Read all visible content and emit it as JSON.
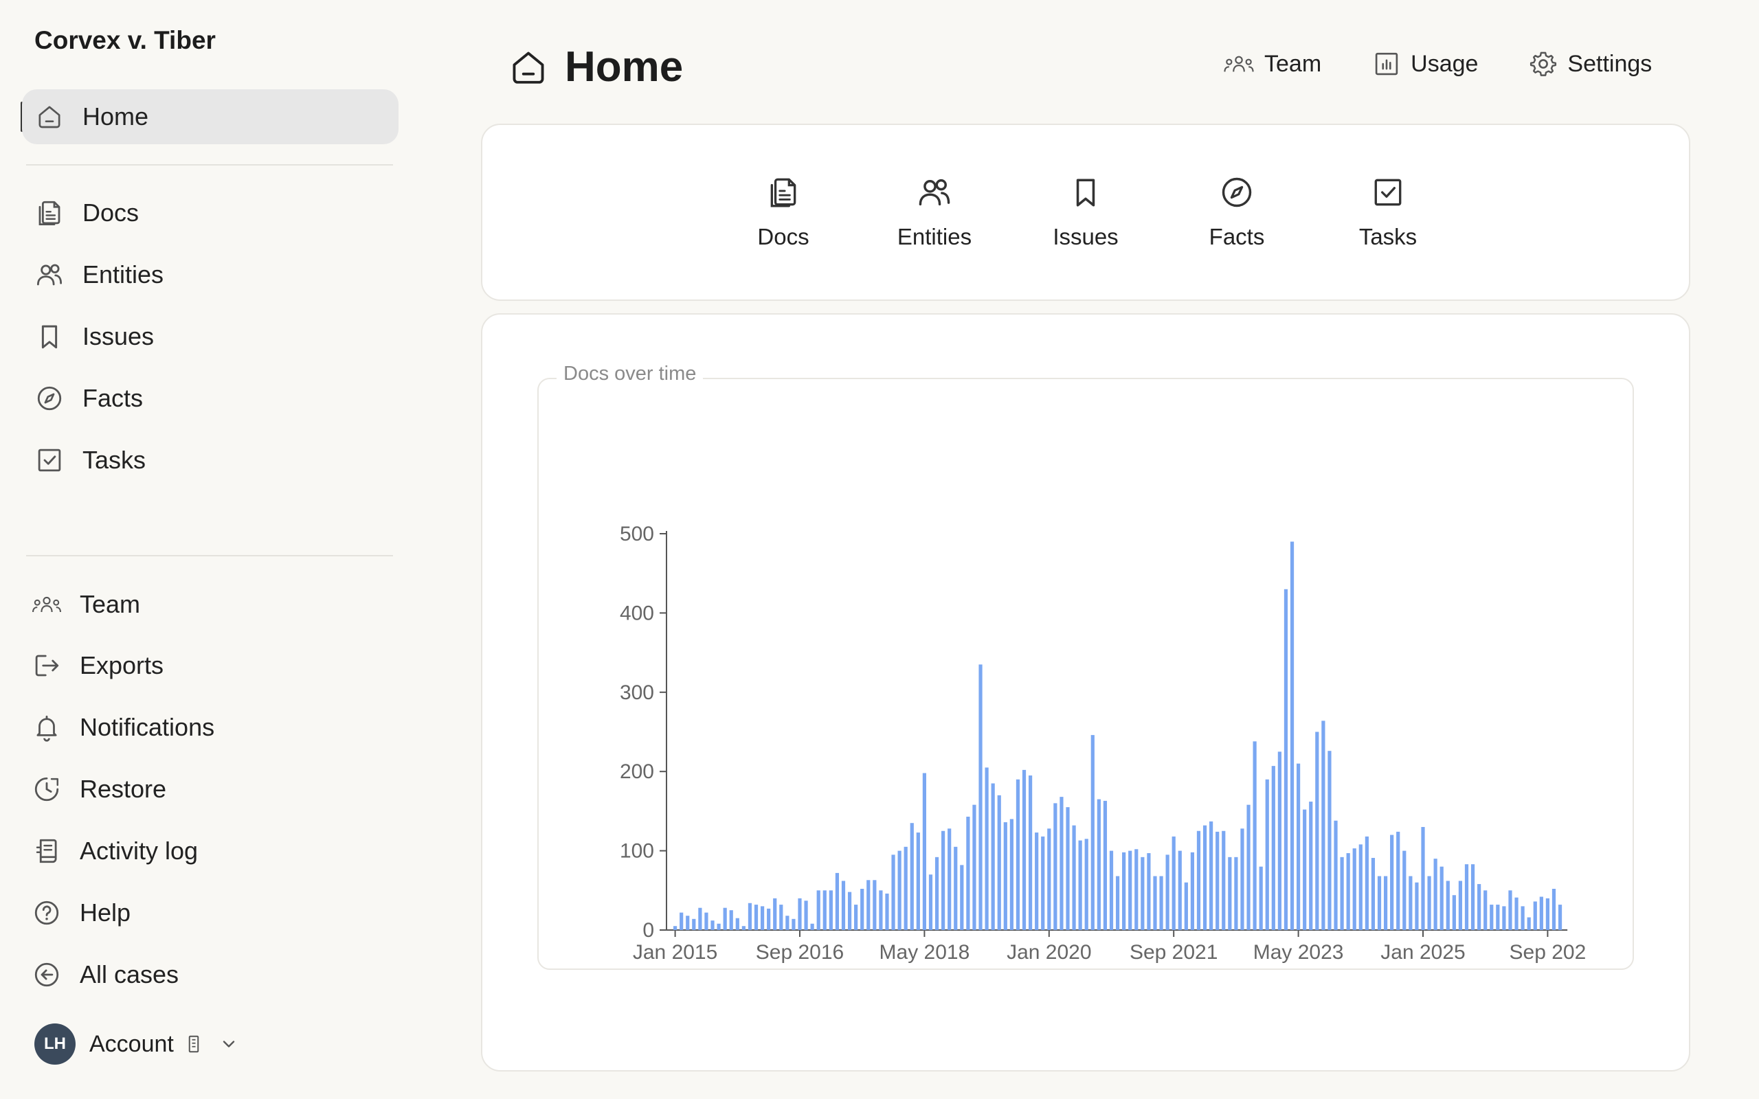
{
  "sidebar": {
    "case_title": "Corvex v. Tiber",
    "primary": [
      {
        "label": "Home",
        "icon": "home-icon"
      }
    ],
    "sections": [
      {
        "label": "Docs",
        "icon": "docs-icon"
      },
      {
        "label": "Entities",
        "icon": "entities-icon"
      },
      {
        "label": "Issues",
        "icon": "bookmark-icon"
      },
      {
        "label": "Facts",
        "icon": "compass-icon"
      },
      {
        "label": "Tasks",
        "icon": "checkbox-icon"
      }
    ],
    "utilities": [
      {
        "label": "Team",
        "icon": "team-icon"
      },
      {
        "label": "Exports",
        "icon": "export-icon"
      },
      {
        "label": "Notifications",
        "icon": "bell-icon"
      },
      {
        "label": "Restore",
        "icon": "restore-icon"
      },
      {
        "label": "Activity log",
        "icon": "activity-log-icon"
      },
      {
        "label": "Help",
        "icon": "help-icon"
      },
      {
        "label": "All cases",
        "icon": "back-arrow-icon"
      }
    ],
    "account": {
      "initials": "LH",
      "label": "Account",
      "avatar_color": "#3b4a5c"
    }
  },
  "header": {
    "title": "Home",
    "actions": [
      {
        "label": "Team",
        "icon": "team-icon"
      },
      {
        "label": "Usage",
        "icon": "usage-icon"
      },
      {
        "label": "Settings",
        "icon": "gear-icon"
      }
    ]
  },
  "quick_links": [
    {
      "label": "Docs",
      "icon": "docs-icon"
    },
    {
      "label": "Entities",
      "icon": "entities-icon"
    },
    {
      "label": "Issues",
      "icon": "bookmark-icon"
    },
    {
      "label": "Facts",
      "icon": "compass-icon"
    },
    {
      "label": "Tasks",
      "icon": "checkbox-icon"
    }
  ],
  "chart_title": "Docs over time",
  "chart_data": {
    "type": "bar",
    "title": "Docs over time",
    "xlabel": "",
    "ylabel": "",
    "x_start": "2015-01",
    "ylim": [
      0,
      500
    ],
    "yticks": [
      0,
      100,
      200,
      300,
      400,
      500
    ],
    "xticks": [
      {
        "label": "Jan 2015",
        "index": 0
      },
      {
        "label": "Sep 2016",
        "index": 20
      },
      {
        "label": "May 2018",
        "index": 40
      },
      {
        "label": "Jan 2020",
        "index": 60
      },
      {
        "label": "Sep 2021",
        "index": 80
      },
      {
        "label": "May 2023",
        "index": 100
      },
      {
        "label": "Jan 2025",
        "index": 120
      },
      {
        "label": "Sep 202",
        "index": 140
      }
    ],
    "bar_color": "#7aa7f2",
    "values": [
      5,
      22,
      18,
      14,
      28,
      22,
      12,
      8,
      28,
      25,
      15,
      5,
      34,
      32,
      30,
      27,
      40,
      32,
      18,
      14,
      40,
      37,
      8,
      50,
      50,
      50,
      72,
      62,
      48,
      32,
      52,
      63,
      63,
      50,
      46,
      95,
      100,
      105,
      135,
      123,
      198,
      70,
      92,
      125,
      128,
      105,
      82,
      143,
      158,
      335,
      205,
      185,
      170,
      136,
      140,
      190,
      202,
      195,
      123,
      118,
      128,
      160,
      168,
      155,
      132,
      113,
      115,
      246,
      165,
      163,
      100,
      68,
      98,
      100,
      102,
      92,
      97,
      68,
      68,
      95,
      118,
      100,
      60,
      98,
      125,
      132,
      137,
      124,
      125,
      92,
      92,
      128,
      158,
      238,
      80,
      190,
      207,
      225,
      430,
      490,
      210,
      152,
      162,
      250,
      264,
      226,
      138,
      92,
      97,
      103,
      108,
      118,
      91,
      68,
      68,
      120,
      124,
      100,
      68,
      60,
      130,
      68,
      90,
      80,
      62,
      44,
      62,
      83,
      83,
      58,
      50,
      32,
      32,
      30,
      50,
      41,
      30,
      16,
      36,
      42,
      40,
      52,
      32
    ]
  }
}
